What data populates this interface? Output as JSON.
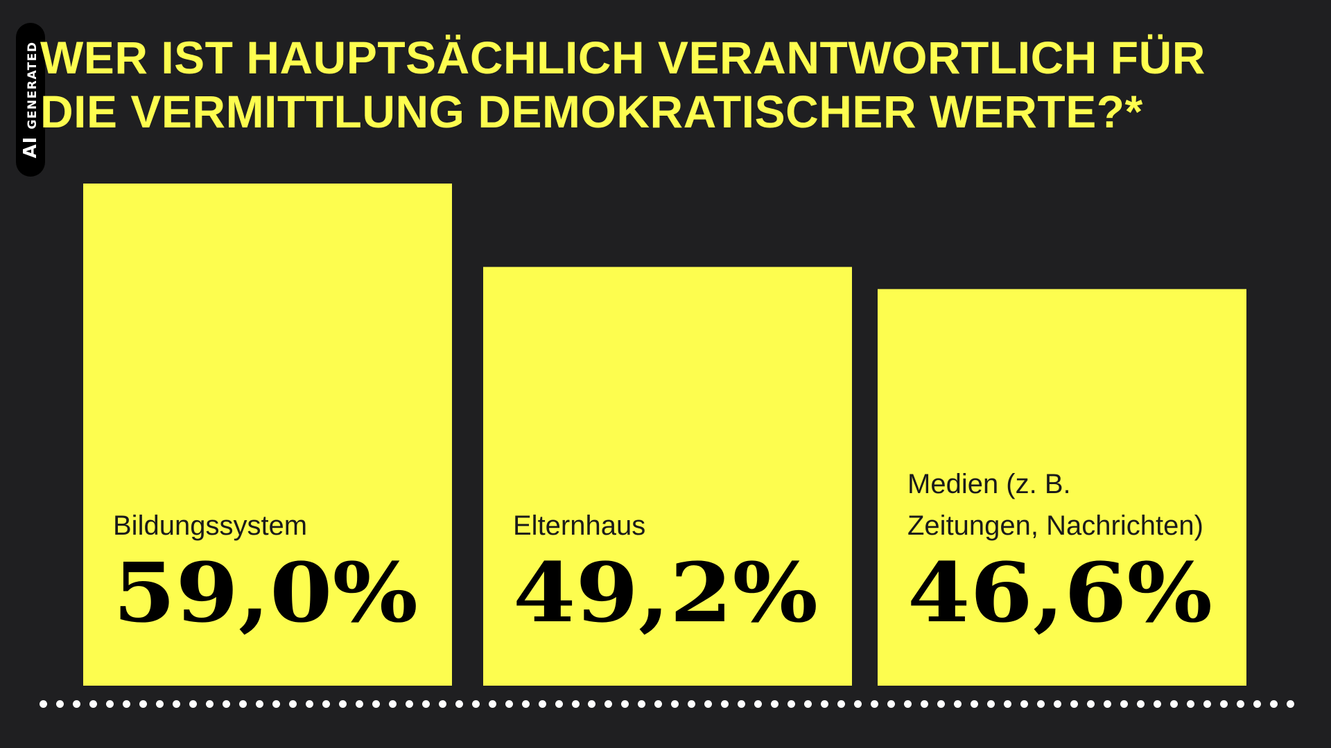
{
  "badge": {
    "ai": "AI",
    "generated": "GENERATED"
  },
  "colors": {
    "background": "#1f1f21",
    "accent": "#fdfd4f",
    "value_text": "#000000",
    "dots": "#ffffff"
  },
  "chart_data": {
    "type": "bar",
    "title_lines": [
      "WER IST HAUPTSÄCHLICH VERANTWORTLICH FÜR",
      "DIE VERMITTLUNG DEMOKRATISCHER WERTE?*"
    ],
    "categories": [
      [
        "Bildungssystem"
      ],
      [
        "Elternhaus"
      ],
      [
        "Medien (z. B.",
        "Zeitungen, Nachrichten)"
      ]
    ],
    "values": [
      59.0,
      49.2,
      46.6
    ],
    "value_labels": [
      "59,0%",
      "49,2%",
      "46,6%"
    ],
    "unit": "%",
    "ylim": [
      0,
      59.0
    ],
    "grid": false,
    "legend": "none"
  }
}
